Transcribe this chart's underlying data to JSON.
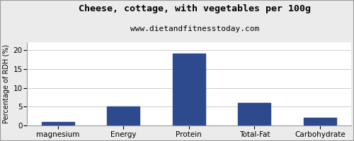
{
  "title": "Cheese, cottage, with vegetables per 100g",
  "subtitle": "www.dietandfitnesstoday.com",
  "categories": [
    "magnesium",
    "Energy",
    "Protein",
    "Total-Fat",
    "Carbohydrate"
  ],
  "values": [
    1.0,
    5.0,
    19.0,
    6.0,
    2.0
  ],
  "bar_color": "#2e4a8e",
  "ylabel": "Percentage of RDH (%)",
  "ylim": [
    0,
    22
  ],
  "yticks": [
    0,
    5,
    10,
    15,
    20
  ],
  "title_fontsize": 9.5,
  "subtitle_fontsize": 8,
  "ylabel_fontsize": 7,
  "xlabel_fontsize": 7.5,
  "tick_fontsize": 7.5,
  "background_color": "#ebebeb",
  "plot_bg_color": "#ffffff",
  "grid_color": "#cccccc",
  "border_color": "#999999"
}
